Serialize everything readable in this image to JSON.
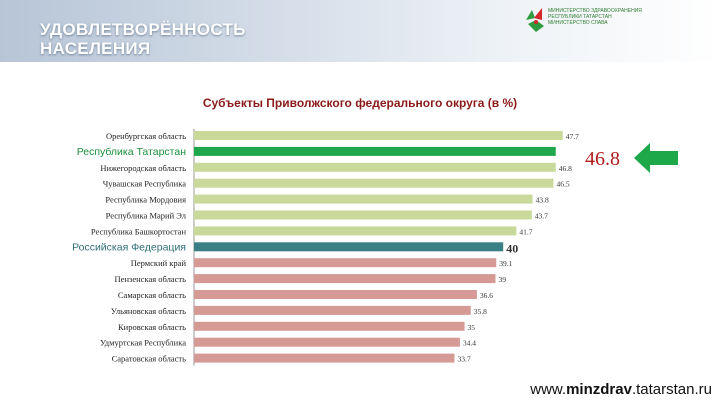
{
  "header": {
    "title": "УДОВЛЕТВОРЁННОСТЬ\nНАСЕЛЕНИЯ",
    "logo_text": "МИНИСТЕРСТВО ЗДРАВООХРАНЕНИЯ\nРЕСПУБЛИКИ ТАТАРСТАН\nМИНИСТЕРСТВО СЛАВА"
  },
  "website": {
    "prefix": "www.",
    "bold": "minzdrav",
    "suffix": ".tatarstan.ru"
  },
  "highlight": {
    "value": "46.8",
    "arrow": "left-arrow-icon",
    "color": "#1fa84a"
  },
  "colors": {
    "bar_green_light": "#c8d99a",
    "bar_green_highlight": "#1fa84a",
    "bar_teal": "#3a7f86",
    "bar_pink": "#d59a95",
    "title": "#8b1a1a"
  },
  "chart_data": {
    "type": "bar",
    "orientation": "horizontal",
    "title": "Субъекты Приволжского федерального округа (в %)",
    "xlim": [
      0,
      49
    ],
    "categories": [
      "Оренбургская область",
      "Республика Татарстан",
      "Нижегородская область",
      "Чувашская Республика",
      "Республика Мордовия",
      "Республика Марий Эл",
      "Республика Башкортостан",
      "Российская Федерация",
      "Пермский край",
      "Пензенская область",
      "Самарская область",
      "Ульяновская область",
      "Кировская область",
      "Удмуртская Республика",
      "Саратовская область"
    ],
    "values": [
      47.7,
      46.8,
      46.8,
      46.5,
      43.8,
      43.7,
      41.7,
      40,
      39.1,
      39,
      36.6,
      35.8,
      35,
      34.4,
      33.7
    ],
    "value_labels": [
      "47.7",
      "",
      "46.8",
      "46.5",
      "43.8",
      "43.7",
      "41.7",
      "40",
      "39.1",
      "39",
      "36.6",
      "35.8",
      "35",
      "34.4",
      "33.7"
    ],
    "bar_styles": [
      "green",
      "highlight",
      "green",
      "green",
      "green",
      "green",
      "green",
      "federal",
      "pink",
      "pink",
      "pink",
      "pink",
      "pink",
      "pink",
      "pink"
    ]
  }
}
